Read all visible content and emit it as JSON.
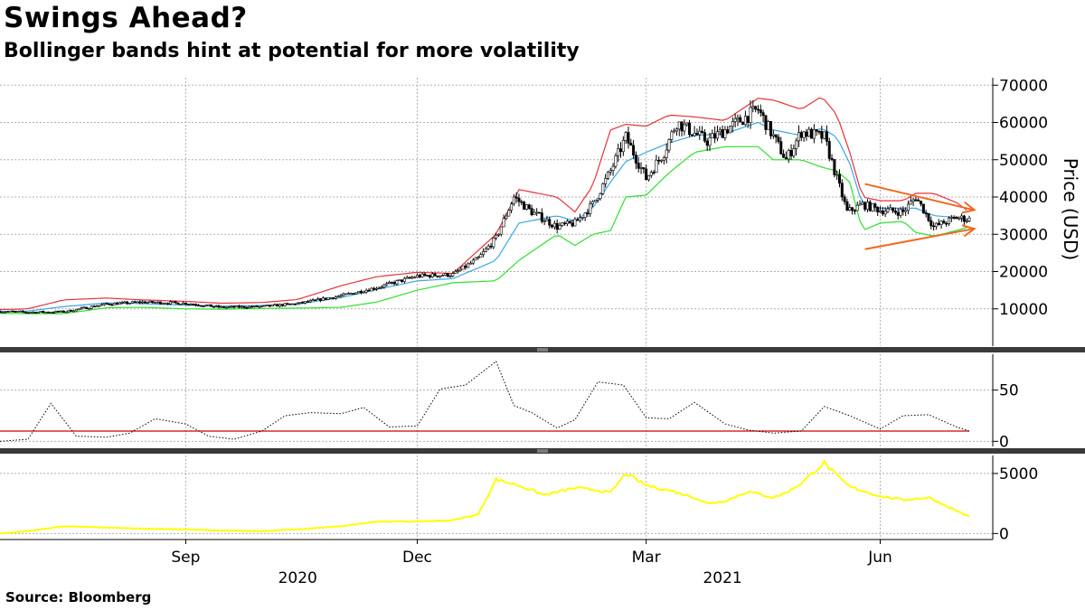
{
  "title": "Swings Ahead?",
  "subtitle": "Bollinger bands hint at potential for more volatility",
  "source": "Source: Bloomberg",
  "colors": {
    "price": "#000000",
    "upper_band": "#e8323c",
    "middle_band": "#3ba7e8",
    "lower_band": "#2ee02e",
    "indicator": "#000000",
    "threshold": "#cc0000",
    "volume": "#ffff00",
    "arrows": "#f06a1f",
    "panel_divider": "#3a3a3a"
  },
  "chart_data": [
    {
      "type": "line",
      "panel": "price",
      "ylabel": "Price (USD)",
      "ylim": [
        0,
        72000
      ],
      "yticks": [
        10000,
        20000,
        30000,
        40000,
        50000,
        60000,
        70000
      ],
      "yticklabels": [
        "10000",
        "20000",
        "30000",
        "40000",
        "50000",
        "60000",
        "70000"
      ],
      "grid": true,
      "x_start": "2020-06-20",
      "x_end": "2021-07-06",
      "xticks": [
        "2020-09-01",
        "2020-12-01",
        "2021-03-01",
        "2021-06-01"
      ],
      "xticklabels": [
        "Sep",
        "Dec",
        "Mar",
        "Jun"
      ],
      "year_labels": [
        {
          "label": "2020",
          "at": "2020-10-15"
        },
        {
          "label": "2021",
          "at": "2021-03-31"
        }
      ],
      "series": [
        {
          "role": "price",
          "style": "candlestick",
          "x": [
            "2020-06-20",
            "2020-07-01",
            "2020-07-15",
            "2020-08-01",
            "2020-08-15",
            "2020-09-01",
            "2020-09-15",
            "2020-10-01",
            "2020-10-15",
            "2020-11-01",
            "2020-11-15",
            "2020-12-01",
            "2020-12-15",
            "2020-12-25",
            "2021-01-01",
            "2021-01-08",
            "2021-01-15",
            "2021-01-25",
            "2021-02-01",
            "2021-02-08",
            "2021-02-15",
            "2021-02-21",
            "2021-03-01",
            "2021-03-08",
            "2021-03-13",
            "2021-03-25",
            "2021-04-01",
            "2021-04-14",
            "2021-04-25",
            "2021-05-01",
            "2021-05-10",
            "2021-05-19",
            "2021-05-25",
            "2021-06-01",
            "2021-06-10",
            "2021-06-15",
            "2021-06-22",
            "2021-07-01",
            "2021-07-06"
          ],
          "values": [
            9300,
            9100,
            9200,
            11300,
            11800,
            11500,
            10400,
            10600,
            11400,
            13500,
            15700,
            18800,
            19200,
            23500,
            29000,
            40000,
            36000,
            32000,
            33000,
            38000,
            47000,
            56000,
            45000,
            52000,
            60000,
            55000,
            58000,
            63500,
            50000,
            57500,
            56000,
            36000,
            38000,
            36500,
            36000,
            40000,
            32000,
            34500,
            34000
          ]
        },
        {
          "role": "upper_band",
          "x": [
            "2020-06-20",
            "2020-07-01",
            "2020-07-15",
            "2020-08-01",
            "2020-08-15",
            "2020-09-01",
            "2020-09-15",
            "2020-10-01",
            "2020-10-15",
            "2020-11-01",
            "2020-11-15",
            "2020-12-01",
            "2020-12-15",
            "2021-01-01",
            "2021-01-10",
            "2021-01-25",
            "2021-02-01",
            "2021-02-08",
            "2021-02-15",
            "2021-02-21",
            "2021-03-01",
            "2021-03-10",
            "2021-03-20",
            "2021-04-01",
            "2021-04-14",
            "2021-04-20",
            "2021-05-01",
            "2021-05-09",
            "2021-05-15",
            "2021-05-20",
            "2021-05-25",
            "2021-06-01",
            "2021-06-10",
            "2021-06-15",
            "2021-06-22",
            "2021-07-01",
            "2021-07-06"
          ],
          "values": [
            9800,
            10000,
            12400,
            12900,
            12400,
            12000,
            11500,
            11700,
            12500,
            16200,
            18600,
            19800,
            19500,
            30000,
            42000,
            40000,
            36000,
            43000,
            58000,
            59500,
            59000,
            62000,
            61500,
            60500,
            66500,
            66000,
            63500,
            67000,
            62000,
            52000,
            40000,
            39000,
            39000,
            41000,
            41000,
            38500,
            36000
          ]
        },
        {
          "role": "middle_band",
          "x": [
            "2020-06-20",
            "2020-07-01",
            "2020-07-15",
            "2020-08-01",
            "2020-08-15",
            "2020-09-01",
            "2020-09-15",
            "2020-10-01",
            "2020-10-15",
            "2020-11-01",
            "2020-11-15",
            "2020-12-01",
            "2020-12-15",
            "2021-01-01",
            "2021-01-10",
            "2021-01-25",
            "2021-02-01",
            "2021-02-08",
            "2021-02-15",
            "2021-02-21",
            "2021-03-01",
            "2021-03-10",
            "2021-03-20",
            "2021-04-01",
            "2021-04-14",
            "2021-04-20",
            "2021-05-01",
            "2021-05-09",
            "2021-05-15",
            "2021-05-20",
            "2021-05-25",
            "2021-06-01",
            "2021-06-10",
            "2021-06-15",
            "2021-06-22",
            "2021-07-01",
            "2021-07-06"
          ],
          "values": [
            9300,
            9400,
            10600,
            11600,
            11400,
            11000,
            10700,
            10900,
            11300,
            13000,
            15200,
            17500,
            18100,
            23000,
            33000,
            35000,
            33500,
            37000,
            44000,
            49500,
            52000,
            54500,
            56500,
            57000,
            60000,
            58000,
            56500,
            58500,
            56000,
            49000,
            38000,
            37000,
            37000,
            37000,
            35000,
            34500,
            33500
          ]
        },
        {
          "role": "lower_band",
          "x": [
            "2020-06-20",
            "2020-07-01",
            "2020-07-15",
            "2020-08-01",
            "2020-08-15",
            "2020-09-01",
            "2020-09-15",
            "2020-10-01",
            "2020-10-15",
            "2020-11-01",
            "2020-11-15",
            "2020-12-01",
            "2020-12-15",
            "2021-01-01",
            "2021-01-10",
            "2021-01-25",
            "2021-02-01",
            "2021-02-08",
            "2021-02-15",
            "2021-02-21",
            "2021-03-01",
            "2021-03-10",
            "2021-03-20",
            "2021-04-01",
            "2021-04-14",
            "2021-04-20",
            "2021-05-01",
            "2021-05-09",
            "2021-05-15",
            "2021-05-20",
            "2021-05-25",
            "2021-06-01",
            "2021-06-10",
            "2021-06-15",
            "2021-06-22",
            "2021-07-01",
            "2021-07-06"
          ],
          "values": [
            8800,
            8700,
            8700,
            10300,
            10400,
            10000,
            9900,
            10100,
            10200,
            10400,
            11800,
            15000,
            17000,
            17500,
            23000,
            30000,
            27000,
            30000,
            31000,
            40000,
            40500,
            46500,
            52000,
            53500,
            53500,
            50000,
            50000,
            48000,
            47000,
            44000,
            31000,
            33000,
            33500,
            30500,
            29500,
            31000,
            32000
          ]
        }
      ],
      "annotations": [
        {
          "type": "arrow",
          "from": [
            "2021-05-26",
            43500
          ],
          "to": [
            "2021-07-08",
            36500
          ]
        },
        {
          "type": "arrow",
          "from": [
            "2021-05-26",
            26000
          ],
          "to": [
            "2021-07-08",
            31500
          ]
        }
      ]
    },
    {
      "type": "line",
      "panel": "indicator",
      "style": "dotted",
      "ylim": [
        -5,
        85
      ],
      "yticks": [
        0,
        50
      ],
      "yticklabels": [
        "0",
        "50"
      ],
      "grid": true,
      "threshold": 10,
      "x": [
        "2020-06-20",
        "2020-07-01",
        "2020-07-10",
        "2020-07-20",
        "2020-08-01",
        "2020-08-10",
        "2020-08-20",
        "2020-09-01",
        "2020-09-10",
        "2020-09-20",
        "2020-10-01",
        "2020-10-10",
        "2020-10-20",
        "2020-11-01",
        "2020-11-10",
        "2020-11-20",
        "2020-12-01",
        "2020-12-10",
        "2020-12-20",
        "2021-01-01",
        "2021-01-08",
        "2021-01-15",
        "2021-01-25",
        "2021-02-01",
        "2021-02-10",
        "2021-02-20",
        "2021-03-01",
        "2021-03-10",
        "2021-03-20",
        "2021-04-01",
        "2021-04-10",
        "2021-04-20",
        "2021-05-01",
        "2021-05-10",
        "2021-05-20",
        "2021-06-01",
        "2021-06-10",
        "2021-06-20",
        "2021-07-01",
        "2021-07-06"
      ],
      "values": [
        0,
        2,
        37,
        5,
        4,
        8,
        22,
        17,
        5,
        2,
        10,
        25,
        28,
        27,
        33,
        14,
        15,
        51,
        55,
        78,
        35,
        28,
        13,
        21,
        58,
        55,
        23,
        22,
        38,
        17,
        11,
        8,
        10,
        34,
        25,
        12,
        25,
        26,
        14,
        10
      ]
    },
    {
      "type": "area",
      "panel": "volume",
      "ylim": [
        -500,
        6500
      ],
      "yticks": [
        0,
        5000
      ],
      "yticklabels": [
        "0",
        "5000"
      ],
      "grid": true,
      "x": [
        "2020-06-20",
        "2020-07-01",
        "2020-07-15",
        "2020-08-01",
        "2020-08-15",
        "2020-09-01",
        "2020-09-15",
        "2020-10-01",
        "2020-10-15",
        "2020-11-01",
        "2020-11-15",
        "2020-12-01",
        "2020-12-15",
        "2020-12-25",
        "2021-01-01",
        "2021-01-10",
        "2021-01-20",
        "2021-02-01",
        "2021-02-10",
        "2021-02-15",
        "2021-02-21",
        "2021-03-01",
        "2021-03-10",
        "2021-03-20",
        "2021-03-25",
        "2021-04-01",
        "2021-04-10",
        "2021-04-20",
        "2021-04-25",
        "2021-05-01",
        "2021-05-10",
        "2021-05-15",
        "2021-05-20",
        "2021-06-01",
        "2021-06-10",
        "2021-06-20",
        "2021-07-01",
        "2021-07-06"
      ],
      "values": [
        0,
        200,
        600,
        500,
        400,
        350,
        250,
        200,
        350,
        600,
        1000,
        1000,
        1100,
        1600,
        4500,
        4000,
        3200,
        3800,
        3600,
        3400,
        5000,
        4000,
        3600,
        3000,
        2500,
        2700,
        3500,
        3000,
        3400,
        4200,
        5900,
        4800,
        3900,
        3100,
        2800,
        3000,
        1900,
        1400
      ]
    }
  ]
}
